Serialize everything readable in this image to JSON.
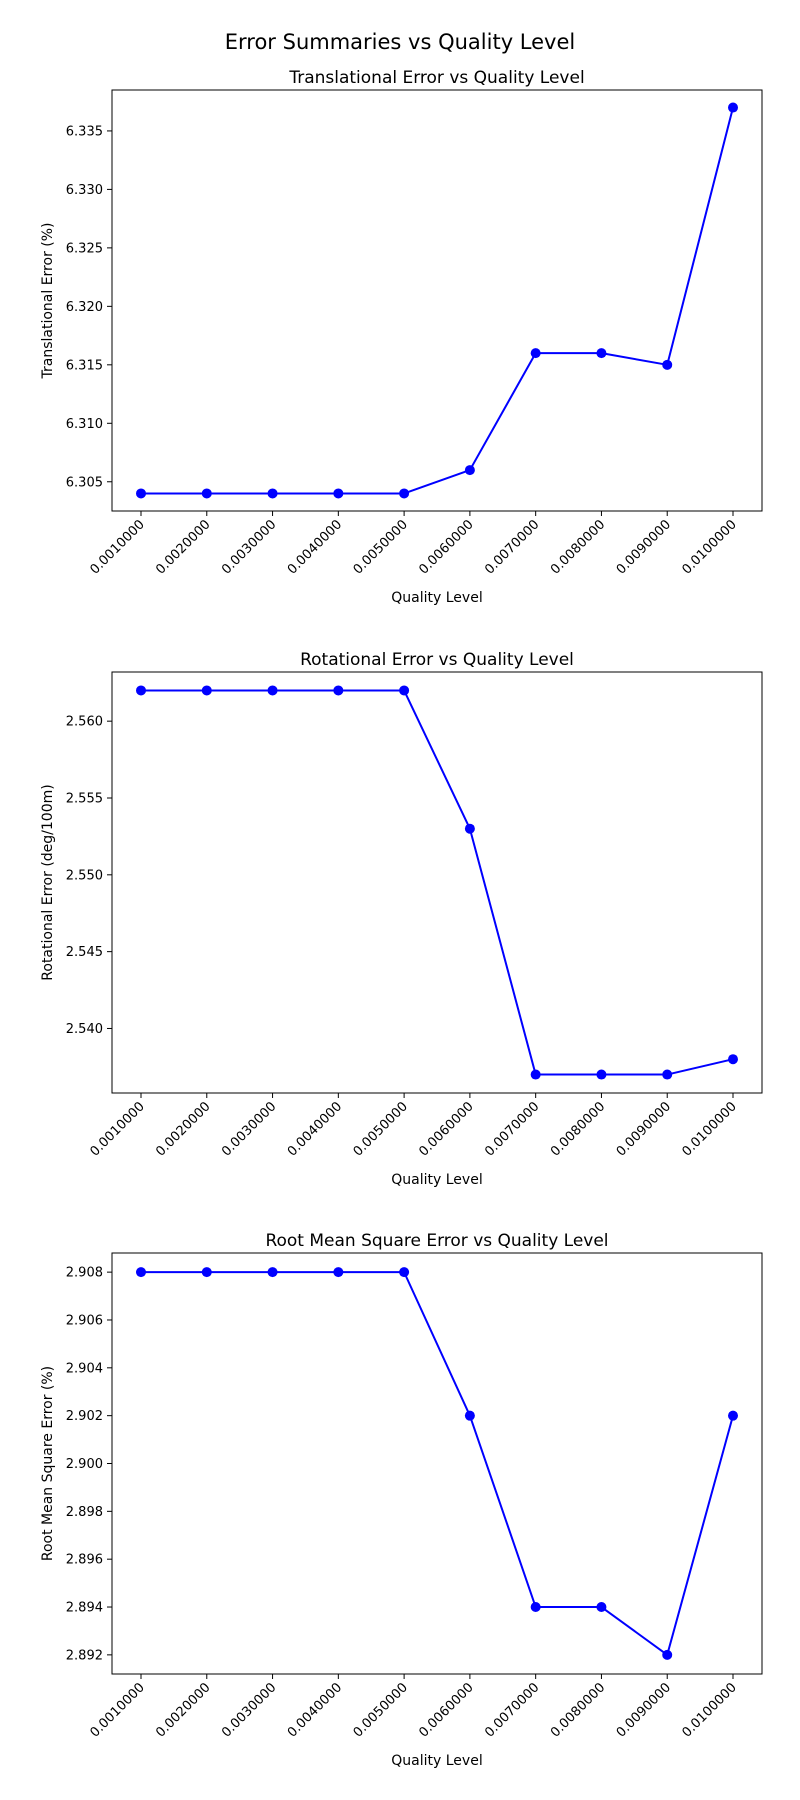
{
  "suptitle": "Error Summaries vs Quality Level",
  "colors": {
    "line": "#0000ff",
    "axes": "#000000",
    "background": "#ffffff"
  },
  "chart_data": [
    {
      "type": "line",
      "title": "Translational Error vs Quality Level",
      "xlabel": "Quality Level",
      "ylabel": "Translational Error (%)",
      "categories": [
        "0.0010000",
        "0.0020000",
        "0.0030000",
        "0.0040000",
        "0.0050000",
        "0.0060000",
        "0.0070000",
        "0.0080000",
        "0.0090000",
        "0.0100000"
      ],
      "values": [
        6.304,
        6.304,
        6.304,
        6.304,
        6.304,
        6.306,
        6.316,
        6.316,
        6.315,
        6.337
      ],
      "ylim": [
        6.3025,
        6.3385
      ],
      "yticks": [
        6.305,
        6.31,
        6.315,
        6.32,
        6.325,
        6.33,
        6.335
      ],
      "ytick_labels": [
        "6.305",
        "6.310",
        "6.315",
        "6.320",
        "6.325",
        "6.330",
        "6.335"
      ],
      "grid": false,
      "marker": "circle"
    },
    {
      "type": "line",
      "title": "Rotational Error vs Quality Level",
      "xlabel": "Quality Level",
      "ylabel": "Rotational Error (deg/100m)",
      "categories": [
        "0.0010000",
        "0.0020000",
        "0.0030000",
        "0.0040000",
        "0.0050000",
        "0.0060000",
        "0.0070000",
        "0.0080000",
        "0.0090000",
        "0.0100000"
      ],
      "values": [
        2.562,
        2.562,
        2.562,
        2.562,
        2.562,
        2.553,
        2.537,
        2.537,
        2.537,
        2.538
      ],
      "ylim": [
        2.5358,
        2.5632
      ],
      "yticks": [
        2.54,
        2.545,
        2.55,
        2.555,
        2.56
      ],
      "ytick_labels": [
        "2.540",
        "2.545",
        "2.550",
        "2.555",
        "2.560"
      ],
      "grid": false,
      "marker": "circle"
    },
    {
      "type": "line",
      "title": "Root Mean Square Error vs Quality Level",
      "xlabel": "Quality Level",
      "ylabel": "Root Mean Square Error (%)",
      "categories": [
        "0.0010000",
        "0.0020000",
        "0.0030000",
        "0.0040000",
        "0.0050000",
        "0.0060000",
        "0.0070000",
        "0.0080000",
        "0.0090000",
        "0.0100000"
      ],
      "values": [
        2.908,
        2.908,
        2.908,
        2.908,
        2.908,
        2.902,
        2.894,
        2.894,
        2.892,
        2.902
      ],
      "ylim": [
        2.8912,
        2.9088
      ],
      "yticks": [
        2.892,
        2.894,
        2.896,
        2.898,
        2.9,
        2.902,
        2.904,
        2.906,
        2.908
      ],
      "ytick_labels": [
        "2.892",
        "2.894",
        "2.896",
        "2.898",
        "2.900",
        "2.902",
        "2.904",
        "2.906",
        "2.908"
      ],
      "grid": false,
      "marker": "circle"
    }
  ]
}
